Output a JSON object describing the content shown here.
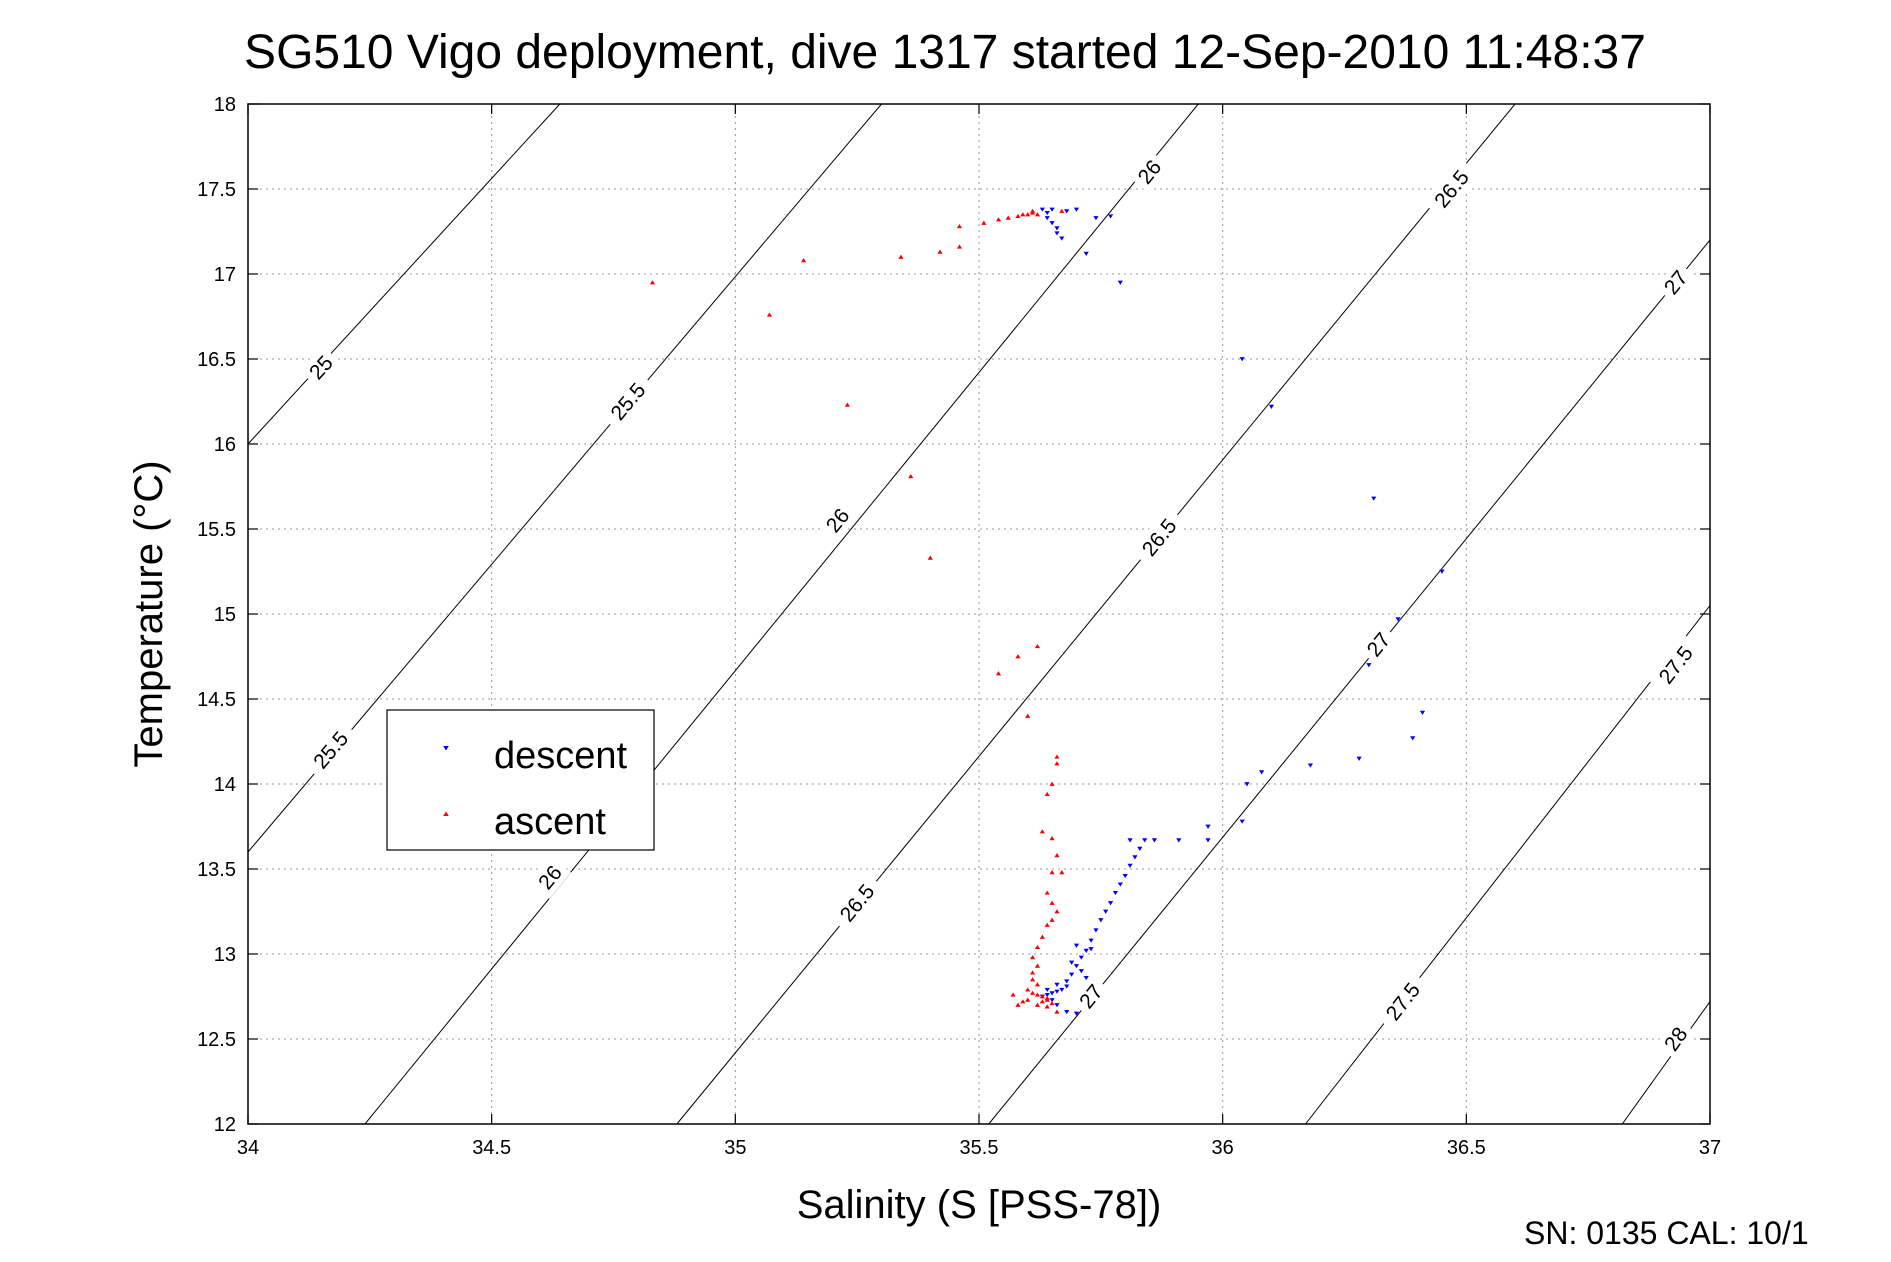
{
  "chart_data": {
    "type": "scatter",
    "title": "SG510 Vigo deployment, dive 1317 started 12-Sep-2010 11:48:37",
    "xlabel": "Salinity (S [PSS-78])",
    "ylabel": "Temperature (°C)",
    "xlim": [
      34,
      37
    ],
    "ylim": [
      12,
      18
    ],
    "xticks": [
      "34",
      "34.5",
      "35",
      "35.5",
      "36",
      "36.5",
      "37"
    ],
    "yticks": [
      "12",
      "12.5",
      "13",
      "13.5",
      "14",
      "14.5",
      "15",
      "15.5",
      "16",
      "16.5",
      "17",
      "17.5",
      "18"
    ],
    "grid": true,
    "legend_position": "middle-left",
    "footer": "SN: 0135  CAL: 10/1",
    "isopycnals": [
      {
        "label": "25",
        "points": [
          [
            34.0,
            16.0
          ],
          [
            34.64,
            18.0
          ]
        ],
        "label_at": [
          [
            34.15,
            16.45
          ]
        ]
      },
      {
        "label": "25.5",
        "points": [
          [
            34.0,
            13.6
          ],
          [
            35.3,
            18.0
          ]
        ],
        "label_at": [
          [
            34.17,
            14.2
          ],
          [
            34.78,
            16.25
          ]
        ]
      },
      {
        "label": "26",
        "points": [
          [
            34.24,
            12.0
          ],
          [
            35.95,
            18.0
          ]
        ],
        "label_at": [
          [
            34.62,
            13.45
          ],
          [
            35.21,
            15.55
          ],
          [
            35.85,
            17.6
          ]
        ]
      },
      {
        "label": "26.5",
        "points": [
          [
            34.88,
            12.0
          ],
          [
            36.6,
            18.0
          ]
        ],
        "label_at": [
          [
            35.25,
            13.3
          ],
          [
            35.87,
            15.45
          ],
          [
            36.47,
            17.5
          ]
        ]
      },
      {
        "label": "27",
        "points": [
          [
            35.52,
            12.0
          ],
          [
            37.0,
            17.2
          ]
        ],
        "label_at": [
          [
            35.73,
            12.75
          ],
          [
            36.32,
            14.82
          ],
          [
            36.93,
            16.95
          ]
        ]
      },
      {
        "label": "27.5",
        "points": [
          [
            36.17,
            12.0
          ],
          [
            37.0,
            15.05
          ]
        ],
        "label_at": [
          [
            36.37,
            12.72
          ],
          [
            36.93,
            14.7
          ]
        ]
      },
      {
        "label": "28",
        "points": [
          [
            36.82,
            12.0
          ],
          [
            37.0,
            12.72
          ]
        ],
        "label_at": [
          [
            36.93,
            12.5
          ]
        ]
      }
    ],
    "series": [
      {
        "name": "descent",
        "color": "#0000ff",
        "marker": "triangle-down",
        "points": [
          [
            35.63,
            17.38
          ],
          [
            35.64,
            17.36
          ],
          [
            35.64,
            17.33
          ],
          [
            35.65,
            17.3
          ],
          [
            35.66,
            17.27
          ],
          [
            35.66,
            17.24
          ],
          [
            35.67,
            17.21
          ],
          [
            35.65,
            17.38
          ],
          [
            35.68,
            17.37
          ],
          [
            35.7,
            17.38
          ],
          [
            35.74,
            17.33
          ],
          [
            35.77,
            17.34
          ],
          [
            35.72,
            17.12
          ],
          [
            35.79,
            16.95
          ],
          [
            36.04,
            16.5
          ],
          [
            36.1,
            16.22
          ],
          [
            36.31,
            15.68
          ],
          [
            36.45,
            15.25
          ],
          [
            36.36,
            14.97
          ],
          [
            36.3,
            14.7
          ],
          [
            36.41,
            14.42
          ],
          [
            36.39,
            14.27
          ],
          [
            36.28,
            14.15
          ],
          [
            36.18,
            14.11
          ],
          [
            36.08,
            14.07
          ],
          [
            36.05,
            14.0
          ],
          [
            36.04,
            13.78
          ],
          [
            35.97,
            13.75
          ],
          [
            35.97,
            13.67
          ],
          [
            35.91,
            13.67
          ],
          [
            35.86,
            13.67
          ],
          [
            35.84,
            13.67
          ],
          [
            35.81,
            13.67
          ],
          [
            35.83,
            13.62
          ],
          [
            35.82,
            13.57
          ],
          [
            35.81,
            13.52
          ],
          [
            35.8,
            13.46
          ],
          [
            35.79,
            13.41
          ],
          [
            35.78,
            13.36
          ],
          [
            35.77,
            13.3
          ],
          [
            35.76,
            13.25
          ],
          [
            35.75,
            13.2
          ],
          [
            35.74,
            13.14
          ],
          [
            35.73,
            13.08
          ],
          [
            35.72,
            13.02
          ],
          [
            35.71,
            12.98
          ],
          [
            35.7,
            12.93
          ],
          [
            35.69,
            12.88
          ],
          [
            35.68,
            12.84
          ],
          [
            35.68,
            12.81
          ],
          [
            35.67,
            12.79
          ],
          [
            35.66,
            12.78
          ],
          [
            35.65,
            12.77
          ],
          [
            35.64,
            12.76
          ],
          [
            35.63,
            12.75
          ],
          [
            35.65,
            12.73
          ],
          [
            35.66,
            12.7
          ],
          [
            35.68,
            12.66
          ],
          [
            35.7,
            12.65
          ],
          [
            35.72,
            12.86
          ],
          [
            35.73,
            13.03
          ],
          [
            35.71,
            12.9
          ],
          [
            35.7,
            13.05
          ],
          [
            35.69,
            12.95
          ],
          [
            35.66,
            12.82
          ],
          [
            35.64,
            12.79
          ]
        ]
      },
      {
        "name": "ascent",
        "color": "#ff0000",
        "marker": "triangle-up",
        "points": [
          [
            34.83,
            16.95
          ],
          [
            35.07,
            16.76
          ],
          [
            35.14,
            17.08
          ],
          [
            35.23,
            16.23
          ],
          [
            35.34,
            17.1
          ],
          [
            35.36,
            15.81
          ],
          [
            35.4,
            15.33
          ],
          [
            35.42,
            17.13
          ],
          [
            35.46,
            17.16
          ],
          [
            35.46,
            17.28
          ],
          [
            35.51,
            17.3
          ],
          [
            35.54,
            17.32
          ],
          [
            35.56,
            17.33
          ],
          [
            35.58,
            17.34
          ],
          [
            35.59,
            17.35
          ],
          [
            35.6,
            17.35
          ],
          [
            35.61,
            17.36
          ],
          [
            35.61,
            17.37
          ],
          [
            35.62,
            17.35
          ],
          [
            35.67,
            17.37
          ],
          [
            35.54,
            14.65
          ],
          [
            35.58,
            14.75
          ],
          [
            35.62,
            14.81
          ],
          [
            35.6,
            14.4
          ],
          [
            35.66,
            14.16
          ],
          [
            35.66,
            14.12
          ],
          [
            35.65,
            14.0
          ],
          [
            35.64,
            13.94
          ],
          [
            35.63,
            13.72
          ],
          [
            35.65,
            13.68
          ],
          [
            35.66,
            13.58
          ],
          [
            35.65,
            13.48
          ],
          [
            35.67,
            13.48
          ],
          [
            35.64,
            13.36
          ],
          [
            35.65,
            13.3
          ],
          [
            35.66,
            13.25
          ],
          [
            35.65,
            13.2
          ],
          [
            35.64,
            13.17
          ],
          [
            35.63,
            13.1
          ],
          [
            35.62,
            13.04
          ],
          [
            35.61,
            12.98
          ],
          [
            35.62,
            12.93
          ],
          [
            35.61,
            12.89
          ],
          [
            35.61,
            12.85
          ],
          [
            35.62,
            12.82
          ],
          [
            35.6,
            12.79
          ],
          [
            35.61,
            12.77
          ],
          [
            35.62,
            12.76
          ],
          [
            35.63,
            12.75
          ],
          [
            35.64,
            12.74
          ],
          [
            35.63,
            12.72
          ],
          [
            35.6,
            12.73
          ],
          [
            35.59,
            12.72
          ],
          [
            35.58,
            12.7
          ],
          [
            35.57,
            12.76
          ],
          [
            35.62,
            12.7
          ],
          [
            35.64,
            12.73
          ],
          [
            35.65,
            12.71
          ],
          [
            35.64,
            12.69
          ],
          [
            35.66,
            12.66
          ]
        ]
      }
    ]
  }
}
